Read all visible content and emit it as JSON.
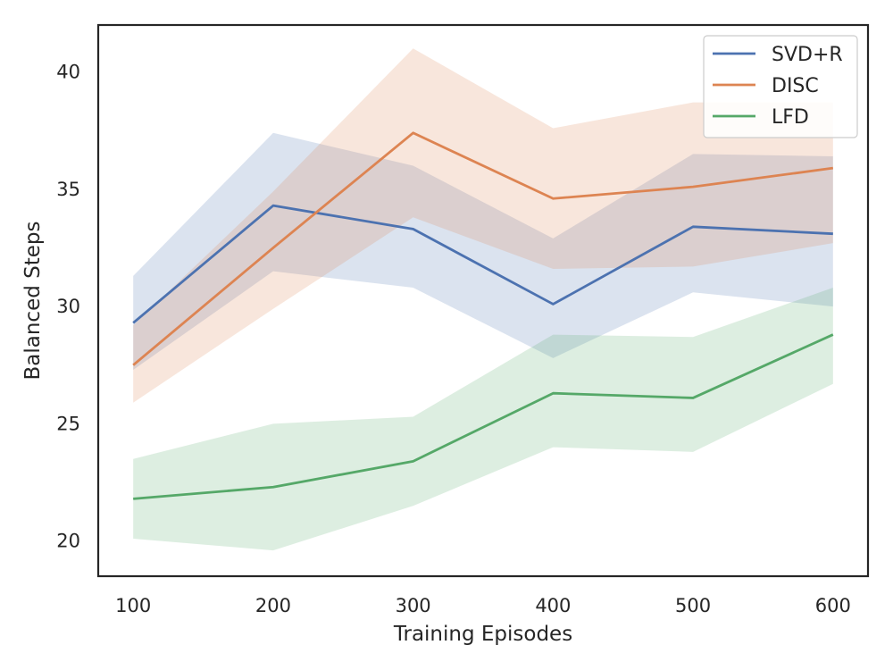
{
  "chart_data": {
    "type": "line",
    "xlabel": "Training Episodes",
    "ylabel": "Balanced Steps",
    "x": [
      100,
      200,
      300,
      400,
      500,
      600
    ],
    "xlim": [
      75,
      625
    ],
    "ylim": [
      18.5,
      42
    ],
    "xticks": [
      100,
      200,
      300,
      400,
      500,
      600
    ],
    "yticks": [
      20,
      25,
      30,
      35,
      40
    ],
    "grid": false,
    "legend_position": "top-right",
    "series": [
      {
        "name": "SVD+R",
        "color": "#4c72b0",
        "values": [
          29.3,
          34.3,
          33.3,
          30.1,
          33.4,
          33.1
        ],
        "lower": [
          27.3,
          31.5,
          30.8,
          27.8,
          30.6,
          30.0
        ],
        "upper": [
          31.3,
          37.4,
          36.0,
          32.9,
          36.5,
          36.4
        ]
      },
      {
        "name": "DISC",
        "color": "#dd8452",
        "values": [
          27.5,
          32.5,
          37.4,
          34.6,
          35.1,
          35.9
        ],
        "lower": [
          25.9,
          29.9,
          33.8,
          31.6,
          31.7,
          32.7
        ],
        "upper": [
          29.2,
          34.9,
          41.0,
          37.6,
          38.7,
          38.7
        ]
      },
      {
        "name": "LFD",
        "color": "#55a868",
        "values": [
          21.8,
          22.3,
          23.4,
          26.3,
          26.1,
          28.8
        ],
        "lower": [
          20.1,
          19.6,
          21.5,
          24.0,
          23.8,
          26.7
        ],
        "upper": [
          23.5,
          25.0,
          25.3,
          28.8,
          28.7,
          30.8
        ]
      }
    ]
  }
}
